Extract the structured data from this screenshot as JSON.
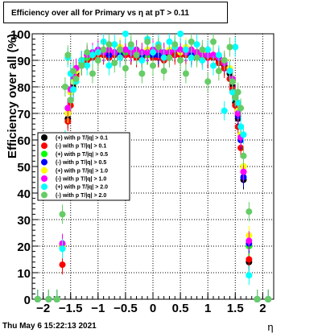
{
  "chart_data": {
    "type": "scatter",
    "title": "Efficiency over all for Primary vs   η at pT > 0.11",
    "xlabel": "η",
    "ylabel": "Efficiency over all (%)",
    "xlim": [
      -2.2,
      2.2
    ],
    "ylim": [
      0,
      100
    ],
    "xticks": [
      -2,
      -1.5,
      -1,
      -0.5,
      0,
      0.5,
      1,
      1.5,
      2
    ],
    "xtick_labels": [
      "−2",
      "−1.5",
      "−1",
      "−0.5",
      "0",
      "0.5",
      "1",
      "1.5",
      "2"
    ],
    "yticks": [
      0,
      10,
      20,
      30,
      40,
      50,
      60,
      70,
      80,
      90,
      100
    ],
    "ytick_labels": [
      "0",
      "10",
      "20",
      "30",
      "40",
      "50",
      "60",
      "70",
      "80",
      "90",
      "100"
    ],
    "grid": true,
    "legend_position": "left-middle",
    "series": [
      {
        "name": "(+) with p T/|q| > 0.1",
        "color": "#000000",
        "x": [
          -2.1,
          -1.9,
          -1.75,
          -1.65,
          -1.6,
          -1.55,
          -1.5,
          -1.45,
          -1.4,
          -1.3,
          -1.2,
          -1.1,
          -1.0,
          -0.9,
          -0.8,
          -0.7,
          -0.6,
          -0.5,
          -0.4,
          -0.3,
          -0.2,
          -0.1,
          0.0,
          0.1,
          0.2,
          0.3,
          0.4,
          0.5,
          0.6,
          0.7,
          0.8,
          0.9,
          1.0,
          1.1,
          1.2,
          1.3,
          1.4,
          1.45,
          1.5,
          1.55,
          1.6,
          1.65,
          1.75,
          1.9,
          2.1
        ],
        "y": [
          0,
          0,
          0,
          20,
          55,
          68,
          75,
          80,
          85,
          88,
          90,
          92,
          92,
          93,
          92,
          93,
          92,
          93,
          92,
          92,
          91,
          92,
          92,
          91,
          92,
          92,
          93,
          92,
          93,
          92,
          93,
          92,
          91,
          92,
          90,
          88,
          85,
          80,
          74,
          68,
          60,
          45,
          14,
          0,
          0
        ]
      },
      {
        "name": "(-) with p T/|q| > 0.1",
        "color": "#ff0000",
        "x": [
          -2.1,
          -1.9,
          -1.75,
          -1.65,
          -1.6,
          -1.55,
          -1.5,
          -1.45,
          -1.4,
          -1.3,
          -1.2,
          -1.1,
          -1.0,
          -0.9,
          -0.8,
          -0.7,
          -0.6,
          -0.5,
          -0.4,
          -0.3,
          -0.2,
          -0.1,
          0.0,
          0.1,
          0.2,
          0.3,
          0.4,
          0.5,
          0.6,
          0.7,
          0.8,
          0.9,
          1.0,
          1.1,
          1.2,
          1.3,
          1.4,
          1.45,
          1.5,
          1.55,
          1.6,
          1.65,
          1.75,
          1.9,
          2.1
        ],
        "y": [
          0,
          0,
          0,
          13,
          50,
          67,
          73,
          79,
          84,
          88,
          90,
          91,
          92,
          92,
          91,
          92,
          91,
          92,
          92,
          91,
          91,
          92,
          91,
          91,
          90,
          91,
          92,
          92,
          92,
          91,
          92,
          91,
          91,
          91,
          89,
          87,
          83,
          79,
          73,
          65,
          57,
          48,
          15,
          0,
          0
        ]
      },
      {
        "name": "(+) with p T/|q| > 0.5",
        "color": "#00ff00",
        "x": [
          -2.1,
          -1.9,
          -1.75,
          -1.65,
          -1.6,
          -1.55,
          -1.5,
          -1.45,
          -1.4,
          -1.3,
          -1.2,
          -1.1,
          -1.0,
          -0.9,
          -0.8,
          -0.7,
          -0.6,
          -0.5,
          -0.4,
          -0.3,
          -0.2,
          -0.1,
          0.0,
          0.1,
          0.2,
          0.3,
          0.4,
          0.5,
          0.6,
          0.7,
          0.8,
          0.9,
          1.0,
          1.1,
          1.2,
          1.3,
          1.4,
          1.45,
          1.5,
          1.55,
          1.6,
          1.65,
          1.75,
          1.9,
          2.1
        ],
        "y": [
          0,
          0,
          0,
          21,
          56,
          70,
          78,
          82,
          86,
          89,
          91,
          92,
          93,
          93,
          94,
          93,
          94,
          93,
          94,
          93,
          93,
          92,
          93,
          94,
          93,
          93,
          94,
          93,
          94,
          93,
          93,
          93,
          92,
          92,
          91,
          89,
          86,
          82,
          76,
          70,
          62,
          50,
          20,
          0,
          0
        ]
      },
      {
        "name": "(-) with p T/|q| > 0.5",
        "color": "#0000ff",
        "x": [
          -2.1,
          -1.9,
          -1.75,
          -1.65,
          -1.6,
          -1.55,
          -1.5,
          -1.45,
          -1.4,
          -1.3,
          -1.2,
          -1.1,
          -1.0,
          -0.9,
          -0.8,
          -0.7,
          -0.6,
          -0.5,
          -0.4,
          -0.3,
          -0.2,
          -0.1,
          0.0,
          0.1,
          0.2,
          0.3,
          0.4,
          0.5,
          0.6,
          0.7,
          0.8,
          0.9,
          1.0,
          1.1,
          1.2,
          1.3,
          1.4,
          1.45,
          1.5,
          1.55,
          1.6,
          1.65,
          1.75,
          1.9,
          2.1
        ],
        "y": [
          0,
          0,
          0,
          20,
          56,
          72,
          78,
          83,
          87,
          90,
          92,
          93,
          93,
          93,
          92,
          93,
          92,
          94,
          93,
          92,
          92,
          93,
          92,
          92,
          93,
          93,
          94,
          93,
          93,
          92,
          93,
          92,
          92,
          92,
          91,
          89,
          86,
          82,
          76,
          69,
          60,
          46,
          21,
          0,
          0
        ]
      },
      {
        "name": "(+) with p T/|q| > 1.0",
        "color": "#ffff00",
        "x": [
          -2.1,
          -1.9,
          -1.75,
          -1.65,
          -1.6,
          -1.55,
          -1.5,
          -1.45,
          -1.4,
          -1.3,
          -1.2,
          -1.1,
          -1.0,
          -0.9,
          -0.8,
          -0.7,
          -0.6,
          -0.5,
          -0.4,
          -0.3,
          -0.2,
          -0.1,
          0.0,
          0.1,
          0.2,
          0.3,
          0.4,
          0.5,
          0.6,
          0.7,
          0.8,
          0.9,
          1.0,
          1.1,
          1.2,
          1.3,
          1.4,
          1.45,
          1.5,
          1.55,
          1.6,
          1.65,
          1.75,
          1.9,
          2.1
        ],
        "y": [
          0,
          0,
          0,
          20,
          57,
          70,
          78,
          82,
          86,
          90,
          92,
          93,
          93,
          94,
          94,
          93,
          95,
          94,
          94,
          93,
          93,
          94,
          93,
          94,
          93,
          94,
          94,
          93,
          95,
          94,
          93,
          93,
          92,
          92,
          91,
          90,
          87,
          82,
          77,
          71,
          62,
          50,
          24,
          0,
          0
        ]
      },
      {
        "name": "(-) with p T/|q| > 1.0",
        "color": "#ff00ff",
        "x": [
          -2.1,
          -1.9,
          -1.75,
          -1.65,
          -1.6,
          -1.55,
          -1.5,
          -1.45,
          -1.4,
          -1.3,
          -1.2,
          -1.1,
          -1.0,
          -0.9,
          -0.8,
          -0.7,
          -0.6,
          -0.5,
          -0.4,
          -0.3,
          -0.2,
          -0.1,
          0.0,
          0.1,
          0.2,
          0.3,
          0.4,
          0.5,
          0.6,
          0.7,
          0.8,
          0.9,
          1.0,
          1.1,
          1.2,
          1.3,
          1.4,
          1.45,
          1.5,
          1.55,
          1.6,
          1.65,
          1.75,
          1.9,
          2.1
        ],
        "y": [
          0,
          0,
          0,
          21,
          58,
          72,
          79,
          84,
          87,
          90,
          92,
          93,
          94,
          93,
          94,
          93,
          94,
          94,
          93,
          94,
          93,
          93,
          94,
          94,
          93,
          93,
          94,
          94,
          93,
          94,
          93,
          92,
          92,
          92,
          91,
          89,
          86,
          83,
          77,
          70,
          61,
          48,
          22,
          0,
          0
        ]
      },
      {
        "name": "(+) with p T/|q| > 2.0",
        "color": "#00ffff",
        "x": [
          -2.1,
          -1.9,
          -1.75,
          -1.65,
          -1.6,
          -1.55,
          -1.5,
          -1.45,
          -1.4,
          -1.3,
          -1.2,
          -1.1,
          -1.0,
          -0.9,
          -0.8,
          -0.7,
          -0.6,
          -0.5,
          -0.4,
          -0.3,
          -0.2,
          -0.1,
          0.0,
          0.1,
          0.2,
          0.3,
          0.4,
          0.5,
          0.6,
          0.7,
          0.8,
          0.9,
          1.0,
          1.1,
          1.2,
          1.3,
          1.4,
          1.45,
          1.5,
          1.55,
          1.6,
          1.65,
          1.75,
          1.9,
          2.1
        ],
        "y": [
          0,
          0,
          0,
          19,
          60,
          91,
          85,
          79,
          82,
          90,
          88,
          92,
          93,
          97,
          88,
          96,
          91,
          100,
          95,
          92,
          90,
          98,
          93,
          96,
          91,
          97,
          95,
          100,
          94,
          91,
          96,
          90,
          94,
          88,
          92,
          71,
          86,
          78,
          95,
          74,
          65,
          62,
          9,
          0,
          0
        ]
      },
      {
        "name": "(-) with p T/|q| > 2.0",
        "color": "#66cc66",
        "x": [
          -2.1,
          -1.9,
          -1.75,
          -1.65,
          -1.6,
          -1.55,
          -1.5,
          -1.45,
          -1.4,
          -1.3,
          -1.2,
          -1.1,
          -1.0,
          -0.9,
          -0.8,
          -0.7,
          -0.6,
          -0.5,
          -0.4,
          -0.3,
          -0.2,
          -0.1,
          0.0,
          0.1,
          0.2,
          0.3,
          0.4,
          0.5,
          0.6,
          0.7,
          0.8,
          0.9,
          1.0,
          1.1,
          1.2,
          1.3,
          1.4,
          1.45,
          1.5,
          1.55,
          1.6,
          1.65,
          1.75,
          1.9,
          2.1
        ],
        "y": [
          0,
          0,
          0,
          32,
          80,
          92,
          75,
          86,
          83,
          88,
          93,
          85,
          90,
          94,
          96,
          89,
          94,
          87,
          96,
          92,
          85,
          97,
          88,
          95,
          86,
          91,
          96,
          90,
          85,
          97,
          91,
          94,
          82,
          97,
          86,
          90,
          95,
          82,
          76,
          78,
          72,
          54,
          33,
          0,
          0
        ]
      }
    ]
  },
  "footer": {
    "timestamp": "Thu May  6 15:22:13 2021"
  }
}
